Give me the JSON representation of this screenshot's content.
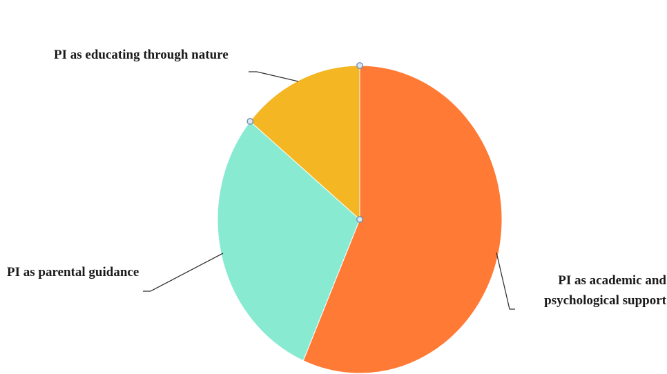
{
  "chart_data": {
    "type": "pie",
    "title": "",
    "start_angle_deg": 0,
    "direction": "clockwise",
    "slices": [
      {
        "label": "PI as academic and psychological support",
        "label_lines": [
          "PI as academic and",
          "psychological support"
        ],
        "value": 56.5,
        "color": "#fe7a35"
      },
      {
        "label": "PI as parental guidance",
        "label_lines": [
          "PI as parental guidance"
        ],
        "value": 29.5,
        "color": "#89ead2"
      },
      {
        "label": "PI as educating through nature",
        "label_lines": [
          "PI as educating through nature"
        ],
        "value": 14.0,
        "color": "#f4b622"
      }
    ],
    "legend": "none",
    "selected_slice": "PI as educating through nature"
  }
}
